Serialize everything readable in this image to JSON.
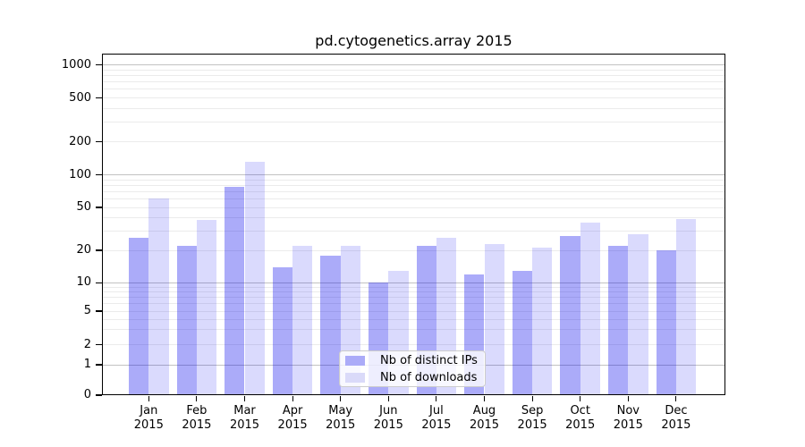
{
  "chart_data": {
    "type": "bar",
    "title": "pd.cytogenetics.array 2015",
    "year": "2015",
    "categories": [
      "Jan",
      "Feb",
      "Mar",
      "Apr",
      "May",
      "Jun",
      "Jul",
      "Aug",
      "Sep",
      "Oct",
      "Nov",
      "Dec"
    ],
    "series": [
      {
        "name": "Nb of distinct IPs",
        "color": "rgba(0,0,238,0.33)",
        "flat_color": "#abhidden",
        "values": [
          26,
          22,
          78,
          14,
          18,
          10,
          22,
          12,
          13,
          27,
          22,
          20
        ]
      },
      {
        "name": "Nb of downloads",
        "color": "rgba(0,0,238,0.145)",
        "values": [
          60,
          38,
          130,
          22,
          22,
          13,
          26,
          23,
          21,
          36,
          28,
          39
        ]
      }
    ],
    "yscale": "symlog",
    "ylim": [
      0,
      1000
    ],
    "ytick_values": [
      0,
      1,
      2,
      5,
      10,
      20,
      50,
      100,
      200,
      500,
      1000
    ],
    "ytick_labels": [
      "0",
      "1",
      "2",
      "5",
      "10",
      "20",
      "50",
      "100",
      "200",
      "500",
      "1000"
    ],
    "grid": true,
    "legend": {
      "position": "lower-center-inside",
      "items": [
        "Nb of distinct IPs",
        "Nb of downloads"
      ]
    },
    "colors": {
      "bar_distinct_ips": "rgba(0,0,238,0.33)",
      "bar_distinct_ips_flat": "#ababf8",
      "bar_downloads": "rgba(0,0,238,0.145)",
      "bar_downloads_flat": "#dadaf9",
      "grid_major": "#c2c2c2",
      "grid_minor": "#ebebeb",
      "spine": "#000000"
    }
  }
}
